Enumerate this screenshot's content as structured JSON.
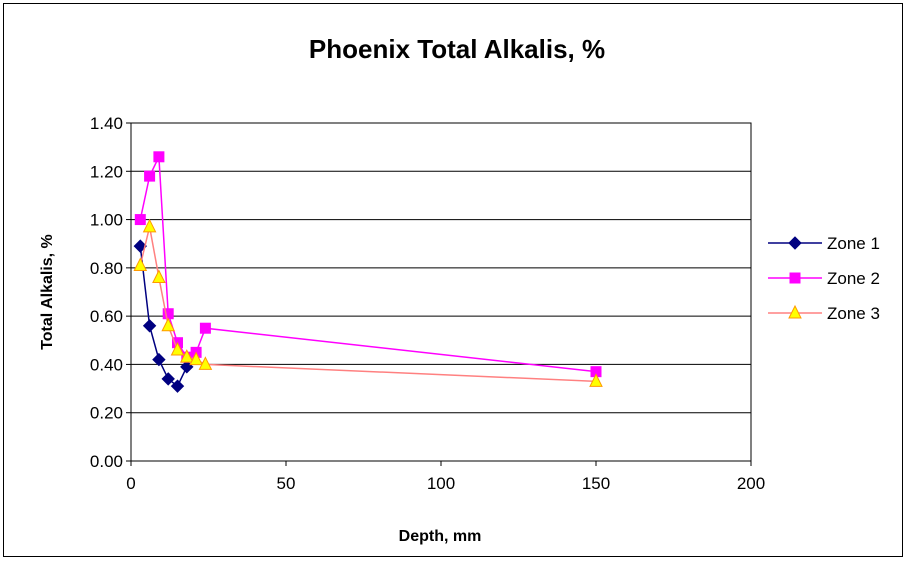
{
  "chart_data": {
    "type": "line",
    "title": "Phoenix Total Alkalis, %",
    "xlabel": "Depth, mm",
    "ylabel": "Total Alkalis, %",
    "xlim": [
      0,
      200
    ],
    "ylim": [
      0,
      1.4
    ],
    "x_ticks": [
      "0",
      "50",
      "100",
      "150",
      "200"
    ],
    "y_ticks": [
      "0.00",
      "0.20",
      "0.40",
      "0.60",
      "0.80",
      "1.00",
      "1.20",
      "1.40"
    ],
    "grid": "horizontal",
    "legend_position": "right",
    "series": [
      {
        "name": "Zone 1",
        "color": "#000080",
        "marker": "diamond",
        "points": [
          [
            3,
            0.89
          ],
          [
            6,
            0.56
          ],
          [
            9,
            0.42
          ],
          [
            12,
            0.34
          ],
          [
            15,
            0.31
          ],
          [
            18,
            0.39
          ]
        ]
      },
      {
        "name": "Zone 2",
        "color": "#ff00ff",
        "marker": "square",
        "points": [
          [
            3,
            1.0
          ],
          [
            6,
            1.18
          ],
          [
            9,
            1.26
          ],
          [
            12,
            0.61
          ],
          [
            15,
            0.49
          ],
          [
            18,
            0.43
          ],
          [
            21,
            0.45
          ],
          [
            24,
            0.55
          ],
          [
            150,
            0.37
          ]
        ]
      },
      {
        "name": "Zone 3",
        "color": "#ff8080",
        "marker_fill": "#ffff00",
        "marker": "triangle",
        "points": [
          [
            3,
            0.81
          ],
          [
            6,
            0.97
          ],
          [
            9,
            0.76
          ],
          [
            12,
            0.56
          ],
          [
            15,
            0.46
          ],
          [
            18,
            0.43
          ],
          [
            21,
            0.42
          ],
          [
            24,
            0.4
          ],
          [
            150,
            0.33
          ]
        ]
      }
    ]
  }
}
